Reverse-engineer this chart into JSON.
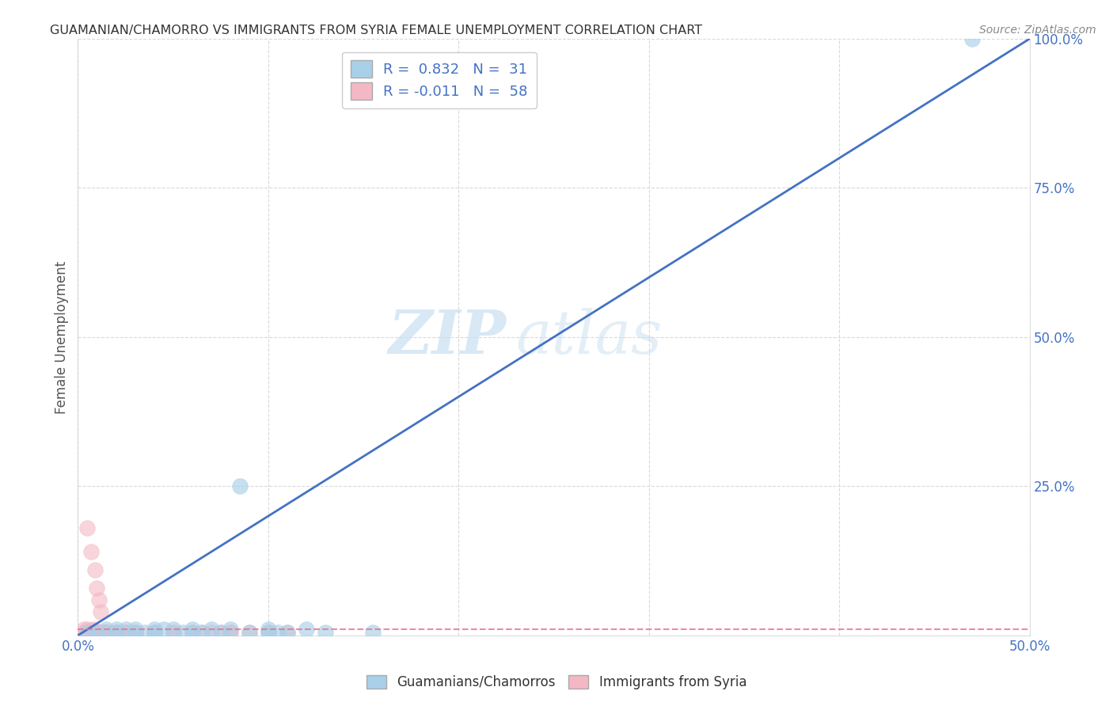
{
  "title": "GUAMANIAN/CHAMORRO VS IMMIGRANTS FROM SYRIA FEMALE UNEMPLOYMENT CORRELATION CHART",
  "source": "Source: ZipAtlas.com",
  "ylabel": "Female Unemployment",
  "watermark_part1": "ZIP",
  "watermark_part2": "atlas",
  "xlim": [
    0.0,
    0.5
  ],
  "ylim": [
    0.0,
    1.0
  ],
  "xticks": [
    0.0,
    0.1,
    0.2,
    0.3,
    0.4,
    0.5
  ],
  "yticks": [
    0.0,
    0.25,
    0.5,
    0.75,
    1.0
  ],
  "ytick_labels": [
    "",
    "25.0%",
    "50.0%",
    "75.0%",
    "100.0%"
  ],
  "xtick_labels": [
    "0.0%",
    "",
    "",
    "",
    "",
    "50.0%"
  ],
  "blue_R": 0.832,
  "blue_N": 31,
  "pink_R": -0.011,
  "pink_N": 58,
  "blue_color": "#a8d0e8",
  "pink_color": "#f4b8c4",
  "blue_line_color": "#4472c4",
  "pink_line_color": "#f4b8c4",
  "axis_label_color": "#4472c4",
  "title_color": "#333333",
  "grid_color": "#d0d0d0",
  "background_color": "#ffffff",
  "blue_scatter_x": [
    0.005,
    0.01,
    0.015,
    0.02,
    0.02,
    0.025,
    0.03,
    0.03,
    0.035,
    0.04,
    0.04,
    0.04,
    0.045,
    0.05,
    0.055,
    0.06,
    0.06,
    0.065,
    0.07,
    0.075,
    0.08,
    0.085,
    0.09,
    0.1,
    0.1,
    0.105,
    0.11,
    0.12,
    0.13,
    0.155,
    0.47
  ],
  "blue_scatter_y": [
    0.005,
    0.005,
    0.01,
    0.01,
    0.005,
    0.01,
    0.005,
    0.01,
    0.005,
    0.005,
    0.01,
    0.005,
    0.01,
    0.01,
    0.005,
    0.005,
    0.01,
    0.005,
    0.01,
    0.005,
    0.01,
    0.25,
    0.005,
    0.005,
    0.01,
    0.005,
    0.005,
    0.01,
    0.005,
    0.005,
    1.0
  ],
  "pink_scatter_x": [
    0.003,
    0.003,
    0.005,
    0.005,
    0.007,
    0.007,
    0.008,
    0.008,
    0.008,
    0.009,
    0.009,
    0.01,
    0.01,
    0.01,
    0.01,
    0.01,
    0.012,
    0.012,
    0.013,
    0.013,
    0.015,
    0.015,
    0.015,
    0.015,
    0.015,
    0.015,
    0.015,
    0.015,
    0.015,
    0.015,
    0.015,
    0.015,
    0.015,
    0.015,
    0.015,
    0.015,
    0.015,
    0.02,
    0.02,
    0.02,
    0.02,
    0.025,
    0.025,
    0.025,
    0.03,
    0.03,
    0.04,
    0.05,
    0.05,
    0.06,
    0.065,
    0.07,
    0.075,
    0.08,
    0.08,
    0.09,
    0.1,
    0.11
  ],
  "pink_scatter_y": [
    0.005,
    0.01,
    0.005,
    0.01,
    0.005,
    0.008,
    0.005,
    0.008,
    0.01,
    0.005,
    0.008,
    0.005,
    0.005,
    0.005,
    0.005,
    0.005,
    0.005,
    0.005,
    0.005,
    0.005,
    0.005,
    0.005,
    0.005,
    0.005,
    0.005,
    0.005,
    0.005,
    0.005,
    0.005,
    0.005,
    0.005,
    0.005,
    0.005,
    0.005,
    0.005,
    0.005,
    0.005,
    0.005,
    0.005,
    0.005,
    0.005,
    0.005,
    0.005,
    0.005,
    0.005,
    0.005,
    0.005,
    0.005,
    0.005,
    0.005,
    0.005,
    0.005,
    0.005,
    0.005,
    0.005,
    0.005,
    0.005,
    0.005
  ],
  "pink_extra_x": [
    0.005,
    0.007,
    0.009,
    0.01,
    0.011,
    0.012
  ],
  "pink_extra_y": [
    0.18,
    0.14,
    0.11,
    0.08,
    0.06,
    0.04
  ]
}
